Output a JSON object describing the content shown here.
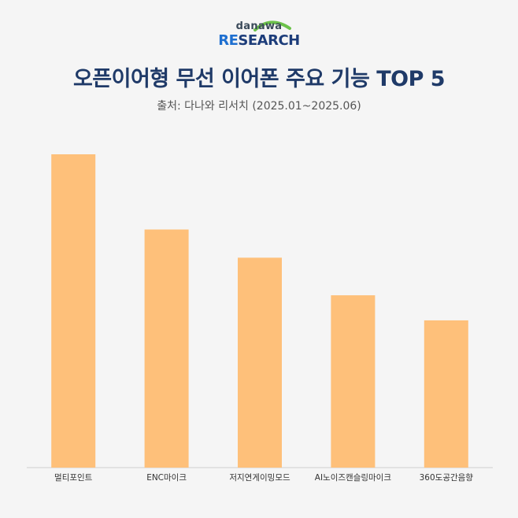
{
  "logo": {
    "top": "danawa",
    "re": "RE",
    "rest": "SEARCH"
  },
  "chart_data": {
    "type": "bar",
    "title": "오픈이어형 무선 이어폰 주요 기능 TOP 5",
    "subtitle": "출처: 다나와 리서치 (2025.01~2025.06)",
    "categories": [
      "멀티포인트",
      "ENC마이크",
      "저지연게이밍모드",
      "AI노이즈캔슬링마이크",
      "360도공간음향"
    ],
    "values": [
      100,
      76,
      67,
      55,
      47
    ],
    "ylim": [
      0,
      100
    ],
    "grid": false,
    "bar_color": "#fec07a",
    "axis_color": "#d0d0d0",
    "label_color": "#333333"
  }
}
